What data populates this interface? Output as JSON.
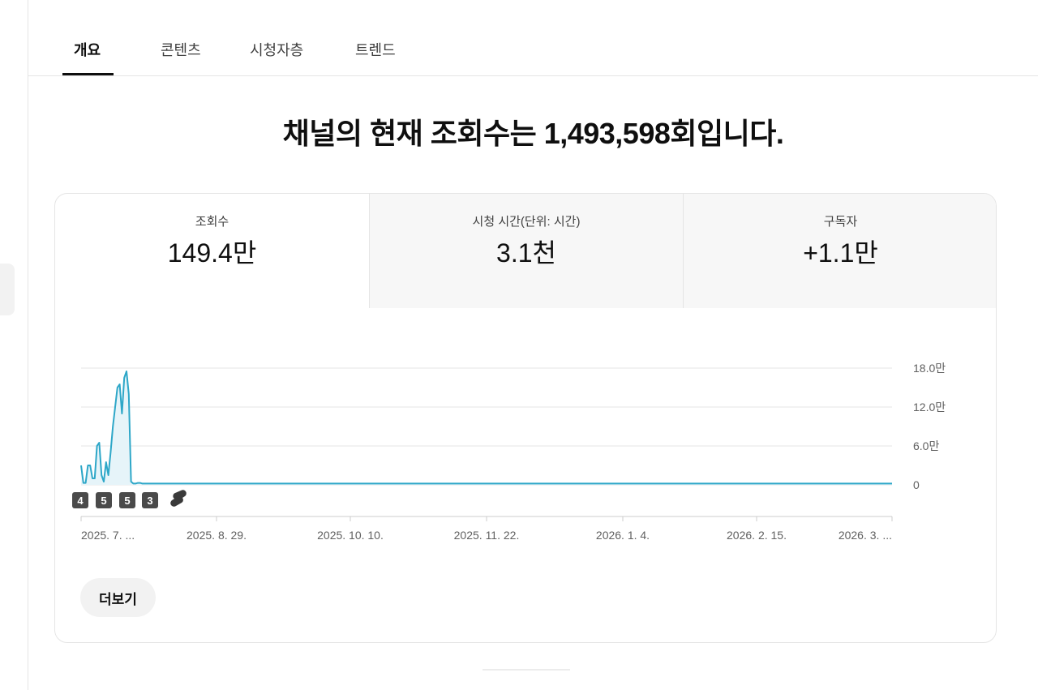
{
  "tabs": [
    {
      "label": "개요",
      "active": true
    },
    {
      "label": "콘텐츠",
      "active": false
    },
    {
      "label": "시청자층",
      "active": false
    },
    {
      "label": "트렌드",
      "active": false
    }
  ],
  "headline": "채널의 현재 조회수는 1,493,598회입니다.",
  "metrics": [
    {
      "label": "조회수",
      "value": "149.4만",
      "selected": true
    },
    {
      "label": "시청 시간(단위: 시간)",
      "value": "3.1천",
      "selected": false
    },
    {
      "label": "구독자",
      "value": "+1.1만",
      "selected": false
    }
  ],
  "more_button": "더보기",
  "chart_data": {
    "type": "area",
    "series": [
      {
        "values": [
          3,
          0.3,
          0.3,
          3,
          3,
          1,
          1,
          6,
          6.5,
          1.5,
          0.5,
          3.5,
          1.5,
          5,
          9,
          12,
          15,
          15.5,
          11,
          16.5,
          17.5,
          14,
          0.5,
          0.2,
          0.2,
          0.3,
          0.3,
          0.2,
          0.2,
          0.2,
          0.2
        ],
        "step_days": 1
      },
      {
        "values": [
          0.2,
          0.2
        ],
        "from": "2025. 7.",
        "to": "2026. 3."
      }
    ],
    "color": "#2ea7c8",
    "fill": "#e6f4f9",
    "y_unit": "만",
    "ylim": [
      0,
      18
    ],
    "y_ticks": [
      "18.0만",
      "12.0만",
      "6.0만",
      "0"
    ],
    "x_ticks": [
      "2025. 7. ...",
      "2025. 8. 29.",
      "2025. 10. 10.",
      "2025. 11. 22.",
      "2026. 1. 4.",
      "2026. 2. 15.",
      "2026. 3. ..."
    ],
    "grid": true,
    "markers": [
      {
        "label": "4",
        "kind": "badge"
      },
      {
        "label": "5",
        "kind": "badge"
      },
      {
        "label": "5",
        "kind": "badge"
      },
      {
        "label": "3",
        "kind": "badge"
      },
      {
        "label": "",
        "kind": "shorts-icon"
      }
    ]
  }
}
